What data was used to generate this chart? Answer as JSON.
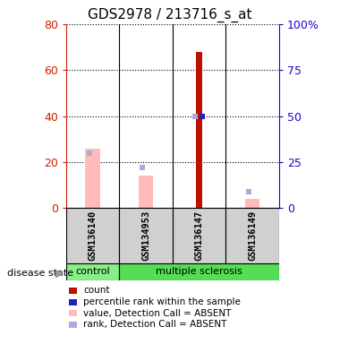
{
  "title": "GDS2978 / 213716_s_at",
  "samples": [
    "GSM136140",
    "GSM134953",
    "GSM136147",
    "GSM136149"
  ],
  "groups": [
    "control",
    "multiple sclerosis",
    "multiple sclerosis",
    "multiple sclerosis"
  ],
  "bar_values": [
    0,
    0,
    68,
    0
  ],
  "bar_color": "#bb1100",
  "bar_width": 0.12,
  "pink_bar_values": [
    26,
    14,
    0,
    4
  ],
  "pink_bar_color": "#ffbbbb",
  "pink_bar_width": 0.28,
  "blue_sq_values": [
    30,
    22,
    50,
    9
  ],
  "blue_sq_color": "#aaaadd",
  "blue_sq_size": 4,
  "dark_blue_sq_values": [
    null,
    null,
    50,
    null
  ],
  "dark_blue_sq_color": "#2222bb",
  "dark_blue_sq_size": 4,
  "ylim_left": [
    0,
    80
  ],
  "ylim_right": [
    0,
    100
  ],
  "yticks_left": [
    0,
    20,
    40,
    60,
    80
  ],
  "ytick_labels_left": [
    "0",
    "20",
    "40",
    "60",
    "80"
  ],
  "yticks_right": [
    0,
    25,
    50,
    75,
    100
  ],
  "ytick_labels_right": [
    "0",
    "25",
    "50",
    "75",
    "100%"
  ],
  "left_axis_color": "#cc2200",
  "right_axis_color": "#2200cc",
  "group_colors": {
    "control": "#88ee88",
    "multiple sclerosis": "#55dd55"
  },
  "group_label": "disease state",
  "legend_items": [
    {
      "label": "count",
      "color": "#bb1100"
    },
    {
      "label": "percentile rank within the sample",
      "color": "#2222bb"
    },
    {
      "label": "value, Detection Call = ABSENT",
      "color": "#ffbbbb"
    },
    {
      "label": "rank, Detection Call = ABSENT",
      "color": "#aaaadd"
    }
  ],
  "fig_width": 3.8,
  "fig_height": 3.84,
  "dpi": 100
}
